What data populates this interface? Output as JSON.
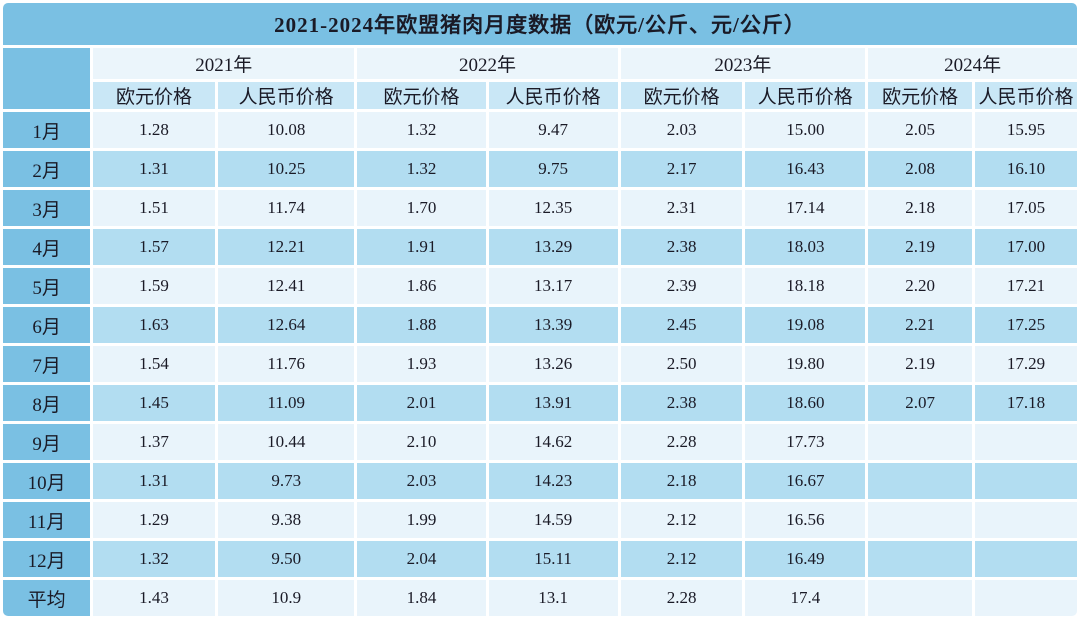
{
  "chart_data": {
    "type": "table",
    "title": "2021-2024年欧盟猪肉月度数据（欧元/公斤、元/公斤）",
    "corner_label": "",
    "year_headers": [
      "2021年",
      "2022年",
      "2023年",
      "2024年"
    ],
    "sub_headers_per_year": [
      "欧元价格",
      "人民币价格"
    ],
    "row_labels": [
      "1月",
      "2月",
      "3月",
      "4月",
      "5月",
      "6月",
      "7月",
      "8月",
      "9月",
      "10月",
      "11月",
      "12月",
      "平均"
    ],
    "rows": [
      [
        "1.28",
        "10.08",
        "1.32",
        "9.47",
        "2.03",
        "15.00",
        "2.05",
        "15.95"
      ],
      [
        "1.31",
        "10.25",
        "1.32",
        "9.75",
        "2.17",
        "16.43",
        "2.08",
        "16.10"
      ],
      [
        "1.51",
        "11.74",
        "1.70",
        "12.35",
        "2.31",
        "17.14",
        "2.18",
        "17.05"
      ],
      [
        "1.57",
        "12.21",
        "1.91",
        "13.29",
        "2.38",
        "18.03",
        "2.19",
        "17.00"
      ],
      [
        "1.59",
        "12.41",
        "1.86",
        "13.17",
        "2.39",
        "18.18",
        "2.20",
        "17.21"
      ],
      [
        "1.63",
        "12.64",
        "1.88",
        "13.39",
        "2.45",
        "19.08",
        "2.21",
        "17.25"
      ],
      [
        "1.54",
        "11.76",
        "1.93",
        "13.26",
        "2.50",
        "19.80",
        "2.19",
        "17.29"
      ],
      [
        "1.45",
        "11.09",
        "2.01",
        "13.91",
        "2.38",
        "18.60",
        "2.07",
        "17.18"
      ],
      [
        "1.37",
        "10.44",
        "2.10",
        "14.62",
        "2.28",
        "17.73",
        "",
        ""
      ],
      [
        "1.31",
        "9.73",
        "2.03",
        "14.23",
        "2.18",
        "16.67",
        "",
        ""
      ],
      [
        "1.29",
        "9.38",
        "1.99",
        "14.59",
        "2.12",
        "16.56",
        "",
        ""
      ],
      [
        "1.32",
        "9.50",
        "2.04",
        "15.11",
        "2.12",
        "16.49",
        "",
        ""
      ],
      [
        "1.43",
        "10.9",
        "1.84",
        "13.1",
        "2.28",
        "17.4",
        "",
        ""
      ]
    ],
    "layout_hints": {
      "row_striping": "odd rows light, even rows darker blue",
      "empty_cells": "2024 data missing for months 9-12 and average"
    }
  },
  "colors": {
    "accent_blue": "#7ac0e3",
    "year_row_bg": "#ebf5fb",
    "subheader_bg": "#c9e7f6",
    "row_light_bg": "#e9f4fb",
    "row_dark_bg": "#b2ddf1",
    "text": "#1a1a26",
    "gap": "#ffffff"
  }
}
